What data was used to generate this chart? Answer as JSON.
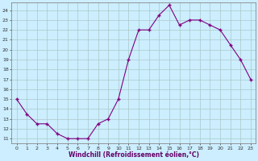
{
  "x": [
    0,
    1,
    2,
    3,
    4,
    5,
    6,
    7,
    8,
    9,
    10,
    11,
    12,
    13,
    14,
    15,
    16,
    17,
    18,
    19,
    20,
    21,
    22,
    23
  ],
  "y": [
    15,
    13.5,
    12.5,
    12.5,
    11.5,
    11,
    11,
    11,
    12.5,
    13,
    15,
    19,
    22,
    22,
    23.5,
    24.5,
    22.5,
    23,
    23,
    22.5,
    22,
    20.5,
    19,
    17
  ],
  "xlabel": "Windchill (Refroidissement éolien,°C)",
  "line_color": "#800080",
  "marker": "+",
  "bg_color": "#cceeff",
  "grid_color": "#aac8c8",
  "yticks": [
    11,
    12,
    13,
    14,
    15,
    16,
    17,
    18,
    19,
    20,
    21,
    22,
    23,
    24
  ],
  "xticks": [
    0,
    1,
    2,
    3,
    4,
    5,
    6,
    7,
    8,
    9,
    10,
    11,
    12,
    13,
    14,
    15,
    16,
    17,
    18,
    19,
    20,
    21,
    22,
    23
  ],
  "xlim": [
    -0.5,
    23.5
  ],
  "ylim": [
    10.5,
    24.8
  ]
}
